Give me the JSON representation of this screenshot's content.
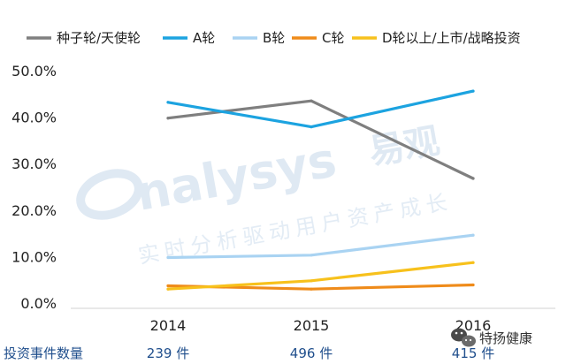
{
  "chart_data": {
    "type": "line",
    "categories": [
      "2014",
      "2015",
      "2016"
    ],
    "series": [
      {
        "name": "种子轮/天使轮",
        "color": "#7f7f7f",
        "values": [
          39.8,
          43.5,
          26.8
        ]
      },
      {
        "name": "A轮",
        "color": "#1ca3e0",
        "values": [
          43.2,
          37.9,
          45.6
        ]
      },
      {
        "name": "B轮",
        "color": "#a9d3f2",
        "values": [
          9.8,
          10.3,
          14.6
        ]
      },
      {
        "name": "C轮",
        "color": "#ef8b1a",
        "values": [
          3.7,
          3.0,
          3.9
        ]
      },
      {
        "name": "D轮以上/上市/战略投资",
        "color": "#f7c11c",
        "values": [
          3.0,
          4.8,
          8.7
        ]
      }
    ],
    "y_ticks": [
      "50.0%",
      "40.0%",
      "30.0%",
      "20.0%",
      "10.0%",
      "0.0%"
    ],
    "ylim": [
      0,
      50
    ],
    "legend_position": "top",
    "grid": false,
    "counts_row": {
      "label": "投资事件数量",
      "values": [
        "239 件",
        "496 件",
        "415 件"
      ]
    }
  },
  "watermark": {
    "brand": "nalysys",
    "brand_cn": "易观",
    "slogan": "实时分析驱动用户资产成长"
  },
  "badge": {
    "text": "特扬健康",
    "icon": "wechat-icon"
  }
}
